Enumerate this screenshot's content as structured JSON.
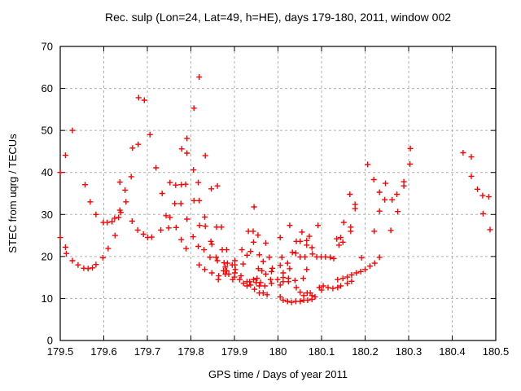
{
  "chart_data": {
    "type": "scatter",
    "title": "Rec. sulp (Lon=24, Lat=49, h=HE), days 179-180, 2011, window 002",
    "xlabel": "GPS time / Days of year 2011",
    "ylabel": "STEC from uqrg / TECUs",
    "xlim": [
      179.5,
      180.5
    ],
    "ylim": [
      0,
      70
    ],
    "xticks": [
      179.5,
      179.6,
      179.7,
      179.8,
      179.9,
      180.0,
      180.1,
      180.2,
      180.3,
      180.4,
      180.5
    ],
    "xtick_labels": [
      "179.5",
      "179.6",
      "179.7",
      "179.8",
      "179.9",
      "180",
      "180.1",
      "180.2",
      "180.3",
      "180.4",
      "180.5"
    ],
    "yticks": [
      0,
      10,
      20,
      30,
      40,
      50,
      60,
      70
    ],
    "ytick_labels": [
      "0",
      "10",
      "20",
      "30",
      "40",
      "50",
      "60",
      "70"
    ],
    "grid": true,
    "legend": "none",
    "marker": "plus",
    "marker_color": "#ff0000",
    "grid_color": "#b0b0b0",
    "axis_color": "#000000",
    "points": [
      [
        179.5,
        40.0
      ],
      [
        179.512,
        44.1
      ],
      [
        179.528,
        50.0
      ],
      [
        179.5,
        24.5
      ],
      [
        179.512,
        22.2
      ],
      [
        179.514,
        20.7
      ],
      [
        179.528,
        19.0
      ],
      [
        179.541,
        18.0
      ],
      [
        179.554,
        17.2
      ],
      [
        179.564,
        17.1
      ],
      [
        179.574,
        17.3
      ],
      [
        179.582,
        18.1
      ],
      [
        179.598,
        19.7
      ],
      [
        179.557,
        37.1
      ],
      [
        179.569,
        33.0
      ],
      [
        179.582,
        30.0
      ],
      [
        179.599,
        28.1
      ],
      [
        179.608,
        28.1
      ],
      [
        179.619,
        28.3
      ],
      [
        179.625,
        29.1
      ],
      [
        179.634,
        29.3
      ],
      [
        179.637,
        31.0
      ],
      [
        179.639,
        30.5
      ],
      [
        179.61,
        21.9
      ],
      [
        179.626,
        25.0
      ],
      [
        179.637,
        37.7
      ],
      [
        179.649,
        35.8
      ],
      [
        179.651,
        33.0
      ],
      [
        179.663,
        39.0
      ],
      [
        179.666,
        45.8
      ],
      [
        179.679,
        46.7
      ],
      [
        179.68,
        57.8
      ],
      [
        179.693,
        57.2
      ],
      [
        179.706,
        49.0
      ],
      [
        179.72,
        41.1
      ],
      [
        179.665,
        28.4
      ],
      [
        179.678,
        26.3
      ],
      [
        179.691,
        25.3
      ],
      [
        179.701,
        24.5
      ],
      [
        179.71,
        24.6
      ],
      [
        179.731,
        26.3
      ],
      [
        179.743,
        29.7
      ],
      [
        179.749,
        26.8
      ],
      [
        179.734,
        35.0
      ],
      [
        179.752,
        37.6
      ],
      [
        179.765,
        37.0
      ],
      [
        179.778,
        37.1
      ],
      [
        179.788,
        37.2
      ],
      [
        179.817,
        37.6
      ],
      [
        179.847,
        36.1
      ],
      [
        179.861,
        36.8
      ],
      [
        179.779,
        45.6
      ],
      [
        179.791,
        48.1
      ],
      [
        179.791,
        44.6
      ],
      [
        179.807,
        55.3
      ],
      [
        179.819,
        62.7
      ],
      [
        179.806,
        40.6
      ],
      [
        179.833,
        44.0
      ],
      [
        179.763,
        32.6
      ],
      [
        179.777,
        32.6
      ],
      [
        179.807,
        33.3
      ],
      [
        179.819,
        33.3
      ],
      [
        179.752,
        29.3
      ],
      [
        179.791,
        28.9
      ],
      [
        179.766,
        26.9
      ],
      [
        179.82,
        27.4
      ],
      [
        179.832,
        29.4
      ],
      [
        179.833,
        27.2
      ],
      [
        179.859,
        27.0
      ],
      [
        179.87,
        27.0
      ],
      [
        179.945,
        31.8
      ],
      [
        179.778,
        24.0
      ],
      [
        179.805,
        24.7
      ],
      [
        179.846,
        23.6
      ],
      [
        179.848,
        22.9
      ],
      [
        179.789,
        21.9
      ],
      [
        179.817,
        22.4
      ],
      [
        179.83,
        21.6
      ],
      [
        179.872,
        21.6
      ],
      [
        179.882,
        21.6
      ],
      [
        179.917,
        21.6
      ],
      [
        179.932,
        26.0
      ],
      [
        179.943,
        26.0
      ],
      [
        179.954,
        25.1
      ],
      [
        179.944,
        23.4
      ],
      [
        179.957,
        20.4
      ],
      [
        179.937,
        21.2
      ],
      [
        179.972,
        23.2
      ],
      [
        179.929,
        20.3
      ],
      [
        179.844,
        19.8
      ],
      [
        179.858,
        19.8
      ],
      [
        179.861,
        19.0
      ],
      [
        179.819,
        18.0
      ],
      [
        179.832,
        16.9
      ],
      [
        179.848,
        16.1
      ],
      [
        179.864,
        15.4
      ],
      [
        179.863,
        14.5
      ],
      [
        179.876,
        18.5
      ],
      [
        179.884,
        18.4
      ],
      [
        179.879,
        17.5
      ],
      [
        179.875,
        16.6
      ],
      [
        179.882,
        16.6
      ],
      [
        179.879,
        15.8
      ],
      [
        179.887,
        15.8
      ],
      [
        179.895,
        18.0
      ],
      [
        179.901,
        19.0
      ],
      [
        179.901,
        18.0
      ],
      [
        179.902,
        16.9
      ],
      [
        179.901,
        16.1
      ],
      [
        179.9,
        15.1
      ],
      [
        179.896,
        14.5
      ],
      [
        179.912,
        14.5
      ],
      [
        179.915,
        15.4
      ],
      [
        179.92,
        18.2
      ],
      [
        179.921,
        13.6
      ],
      [
        179.929,
        14.0
      ],
      [
        179.935,
        14.0
      ],
      [
        179.937,
        13.2
      ],
      [
        179.929,
        13.0
      ],
      [
        179.944,
        14.5
      ],
      [
        179.952,
        14.8
      ],
      [
        179.95,
        13.8
      ],
      [
        179.96,
        13.8
      ],
      [
        179.957,
        13.0
      ],
      [
        179.946,
        12.2
      ],
      [
        179.957,
        11.3
      ],
      [
        179.966,
        11.3
      ],
      [
        179.97,
        13.0
      ],
      [
        179.975,
        10.9
      ],
      [
        179.985,
        13.6
      ],
      [
        179.983,
        14.5
      ],
      [
        179.985,
        16.4
      ],
      [
        179.987,
        17.2
      ],
      [
        179.999,
        14.5
      ],
      [
        179.98,
        19.8
      ],
      [
        180.009,
        19.8
      ],
      [
        179.972,
        15.8
      ],
      [
        179.963,
        16.6
      ],
      [
        179.955,
        17.1
      ],
      [
        179.966,
        18.8
      ],
      [
        180.005,
        24.5
      ],
      [
        180.027,
        27.4
      ],
      [
        180.055,
        25.8
      ],
      [
        180.092,
        27.4
      ],
      [
        180.151,
        28.1
      ],
      [
        180.167,
        27.0
      ],
      [
        180.167,
        26.0
      ],
      [
        180.221,
        26.0
      ],
      [
        180.259,
        26.2
      ],
      [
        180.072,
        24.8
      ],
      [
        180.066,
        23.8
      ],
      [
        180.042,
        23.6
      ],
      [
        180.051,
        23.6
      ],
      [
        180.066,
        22.7
      ],
      [
        180.135,
        24.2
      ],
      [
        180.144,
        24.5
      ],
      [
        180.14,
        22.7
      ],
      [
        180.149,
        23.4
      ],
      [
        180.078,
        22.1
      ],
      [
        180.033,
        21.0
      ],
      [
        180.041,
        20.8
      ],
      [
        180.051,
        19.9
      ],
      [
        180.062,
        19.9
      ],
      [
        180.079,
        20.6
      ],
      [
        180.089,
        19.9
      ],
      [
        180.099,
        19.9
      ],
      [
        180.109,
        19.9
      ],
      [
        180.12,
        19.8
      ],
      [
        180.128,
        19.5
      ],
      [
        180.192,
        19.7
      ],
      [
        180.233,
        19.8
      ],
      [
        180.005,
        17.9
      ],
      [
        180.022,
        18.4
      ],
      [
        180.027,
        17.1
      ],
      [
        180.012,
        16.1
      ],
      [
        180.012,
        15.0
      ],
      [
        180.024,
        14.8
      ],
      [
        180.012,
        14.0
      ],
      [
        180.024,
        14.0
      ],
      [
        180.039,
        14.3
      ],
      [
        180.058,
        14.8
      ],
      [
        180.066,
        16.9
      ],
      [
        180.005,
        13.2
      ],
      [
        180.042,
        12.6
      ],
      [
        180.051,
        11.5
      ],
      [
        180.059,
        10.7
      ],
      [
        180.067,
        11.3
      ],
      [
        180.074,
        11.3
      ],
      [
        180.078,
        10.7
      ],
      [
        180.085,
        10.4
      ],
      [
        180.078,
        9.8
      ],
      [
        180.068,
        9.6
      ],
      [
        180.059,
        9.6
      ],
      [
        180.051,
        9.3
      ],
      [
        180.041,
        9.3
      ],
      [
        180.031,
        9.1
      ],
      [
        180.022,
        9.3
      ],
      [
        180.012,
        9.6
      ],
      [
        180.005,
        10.4
      ],
      [
        180.095,
        12.6
      ],
      [
        180.1,
        12.0
      ],
      [
        180.104,
        13.0
      ],
      [
        180.115,
        12.6
      ],
      [
        180.126,
        12.4
      ],
      [
        180.137,
        12.6
      ],
      [
        180.144,
        13.0
      ],
      [
        180.137,
        14.5
      ],
      [
        180.149,
        14.8
      ],
      [
        180.159,
        15.1
      ],
      [
        180.169,
        15.6
      ],
      [
        180.18,
        16.1
      ],
      [
        180.19,
        16.4
      ],
      [
        180.2,
        16.9
      ],
      [
        180.211,
        17.7
      ],
      [
        180.222,
        18.4
      ],
      [
        180.159,
        13.6
      ],
      [
        180.169,
        14.1
      ],
      [
        180.165,
        34.8
      ],
      [
        180.177,
        32.4
      ],
      [
        180.177,
        31.4
      ],
      [
        180.233,
        30.8
      ],
      [
        180.206,
        41.9
      ],
      [
        180.22,
        38.3
      ],
      [
        180.247,
        37.4
      ],
      [
        180.245,
        33.5
      ],
      [
        180.233,
        35.3
      ],
      [
        180.262,
        33.5
      ],
      [
        180.304,
        45.7
      ],
      [
        180.303,
        42.0
      ],
      [
        180.289,
        37.8
      ],
      [
        180.289,
        36.8
      ],
      [
        180.273,
        34.8
      ],
      [
        180.275,
        30.7
      ],
      [
        180.425,
        44.7
      ],
      [
        180.444,
        43.7
      ],
      [
        180.444,
        39.1
      ],
      [
        180.458,
        36.0
      ],
      [
        180.47,
        34.5
      ],
      [
        180.484,
        34.2
      ],
      [
        180.471,
        30.2
      ],
      [
        180.487,
        26.4
      ]
    ]
  }
}
